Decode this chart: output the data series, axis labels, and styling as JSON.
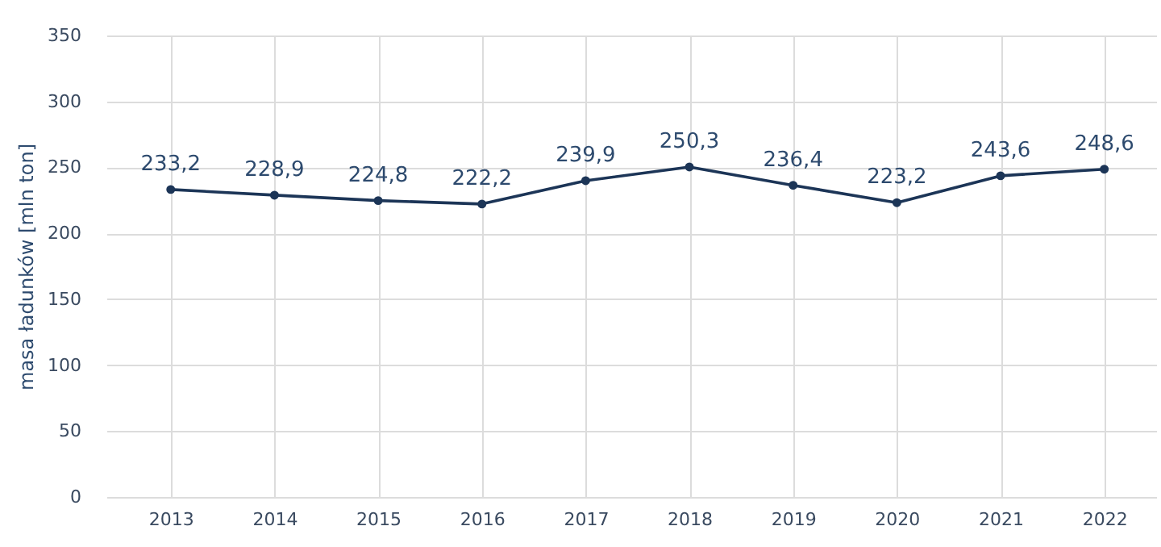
{
  "chart_data": {
    "type": "line",
    "ylabel": "masa ładunków [mln ton]",
    "categories": [
      "2013",
      "2014",
      "2015",
      "2016",
      "2017",
      "2018",
      "2019",
      "2020",
      "2021",
      "2022"
    ],
    "series": [
      {
        "color": "#1c3557",
        "values": [
          233.2,
          228.9,
          224.8,
          222.2,
          239.9,
          250.3,
          236.4,
          223.2,
          243.6,
          248.6
        ],
        "value_labels": [
          "233,2",
          "228,9",
          "224,8",
          "222,2",
          "239,9",
          "250,3",
          "236,4",
          "223,2",
          "243,6",
          "248,6"
        ]
      }
    ],
    "ylim": [
      0,
      350
    ],
    "yticks": [
      0,
      50,
      100,
      150,
      200,
      250,
      300,
      350
    ],
    "grid": true,
    "marker": "circle",
    "line_style": "solid"
  }
}
